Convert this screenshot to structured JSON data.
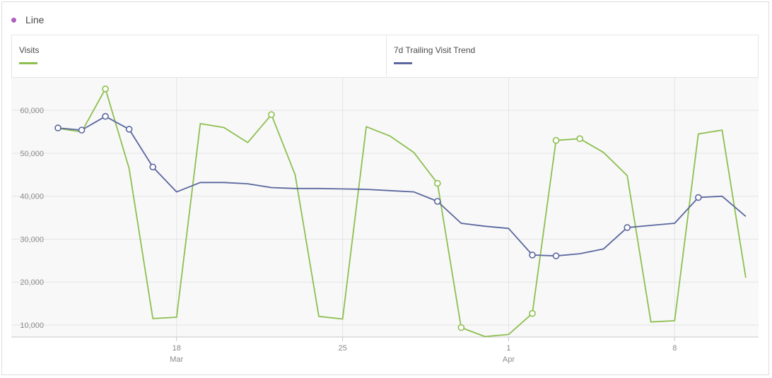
{
  "header": {
    "title": "Line",
    "dot_color": "#b05dbf"
  },
  "chart_data": {
    "type": "line",
    "grid": true,
    "legend_placement": "top",
    "x": [
      "Mar 13",
      "Mar 14",
      "Mar 15",
      "Mar 16",
      "Mar 17",
      "Mar 18",
      "Mar 19",
      "Mar 20",
      "Mar 21",
      "Mar 22",
      "Mar 23",
      "Mar 24",
      "Mar 25",
      "Mar 26",
      "Mar 27",
      "Mar 28",
      "Mar 29",
      "Mar 30",
      "Mar 31",
      "Apr 1",
      "Apr 2",
      "Apr 3",
      "Apr 4",
      "Apr 5",
      "Apr 6",
      "Apr 7",
      "Apr 8",
      "Apr 9",
      "Apr 10",
      "Apr 11"
    ],
    "x_ticks": [
      {
        "index": 5,
        "label": "18",
        "sublabel": "Mar"
      },
      {
        "index": 12,
        "label": "25",
        "sublabel": ""
      },
      {
        "index": 19,
        "label": "1",
        "sublabel": "Apr"
      },
      {
        "index": 26,
        "label": "8",
        "sublabel": ""
      }
    ],
    "y_ticks": [
      "10,000",
      "20,000",
      "30,000",
      "40,000",
      "50,000",
      "60,000"
    ],
    "y_tick_values": [
      10000,
      20000,
      30000,
      40000,
      50000,
      60000
    ],
    "ylim": [
      7200,
      67600
    ],
    "series": [
      {
        "name": "Visits",
        "color": "#8dbf4f",
        "values": [
          55800,
          55000,
          65000,
          46500,
          11500,
          11800,
          56900,
          56000,
          52500,
          59000,
          45000,
          12000,
          11400,
          56200,
          54000,
          50200,
          43000,
          9400,
          7300,
          7800,
          12700,
          53000,
          53400,
          50200,
          44800,
          10700,
          11000,
          54500,
          55400,
          21000
        ],
        "markers": [
          2,
          9,
          16,
          17,
          20,
          21,
          22
        ]
      },
      {
        "name": "7d Trailing Visit Trend",
        "color": "#5b679f",
        "values": [
          55900,
          55400,
          58600,
          55600,
          46800,
          41000,
          43200,
          43200,
          42900,
          42000,
          41800,
          41800,
          41700,
          41600,
          41300,
          41000,
          38800,
          33700,
          33000,
          32500,
          26300,
          26100,
          26600,
          27700,
          32700,
          33200,
          33700,
          39700,
          40000,
          35300
        ],
        "markers": [
          0,
          1,
          2,
          3,
          4,
          16,
          20,
          21,
          24,
          27
        ]
      }
    ]
  }
}
